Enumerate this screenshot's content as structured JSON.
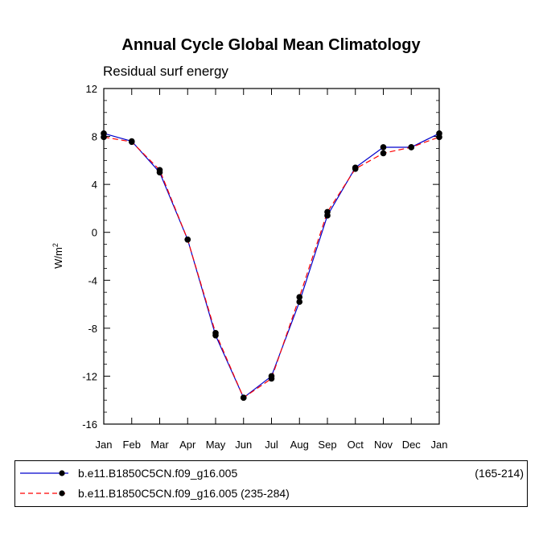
{
  "chart_data": {
    "type": "line",
    "title": "Annual Cycle Global Mean Climatology",
    "subtitle": "Residual surf energy",
    "xlabel": "",
    "ylabel": "W/m",
    "ylabel_superscript": "2",
    "categories": [
      "Jan",
      "Feb",
      "Mar",
      "Apr",
      "May",
      "Jun",
      "Jul",
      "Aug",
      "Sep",
      "Oct",
      "Nov",
      "Dec",
      "Jan"
    ],
    "ylim": [
      -16,
      12
    ],
    "yticks": [
      -16,
      -12,
      -8,
      -4,
      0,
      4,
      8,
      12
    ],
    "series": [
      {
        "name": "b.e11.B1850C5CN.f09_g16.005",
        "range": "(165-214)",
        "color": "#0000cc",
        "dash": "solid",
        "values": [
          8.25,
          7.6,
          5.0,
          -0.6,
          -8.6,
          -13.8,
          -12.0,
          -5.8,
          1.4,
          5.4,
          7.1,
          7.1,
          8.25
        ]
      },
      {
        "name": "b.e11.B1850C5CN.f09_g16.005 (235-284)",
        "range": "",
        "color": "#ff0000",
        "dash": "dashed",
        "values": [
          7.95,
          7.55,
          5.2,
          -0.6,
          -8.4,
          -13.8,
          -12.2,
          -5.4,
          1.7,
          5.3,
          6.6,
          7.1,
          7.95
        ]
      }
    ]
  }
}
